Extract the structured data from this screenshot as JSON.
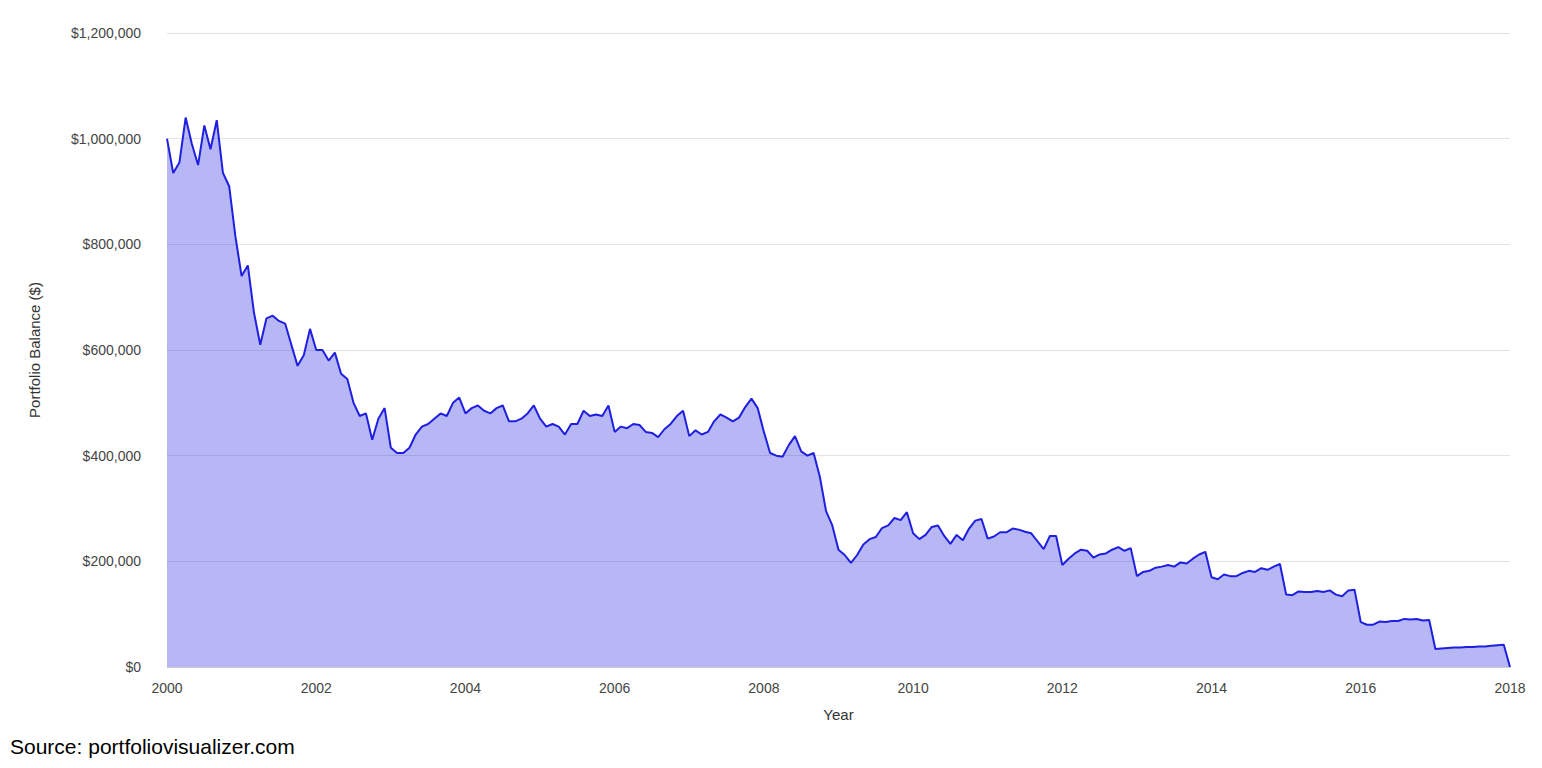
{
  "chart_data": {
    "type": "area",
    "source": "Source: portfoliovisualizer.com",
    "x_label": "Year",
    "y_label": "Portfolio Balance ($)",
    "color": "#1f1fe0",
    "grid": true,
    "xlim": [
      2000,
      2018
    ],
    "xticks": [
      2000,
      2002,
      2004,
      2006,
      2008,
      2010,
      2012,
      2014,
      2016,
      2018
    ],
    "ylim": [
      0,
      1200000
    ],
    "yticks": [
      {
        "value": 0,
        "label": "$0"
      },
      {
        "value": 200000,
        "label": "$200,000"
      },
      {
        "value": 400000,
        "label": "$400,000"
      },
      {
        "value": 600000,
        "label": "$600,000"
      },
      {
        "value": 800000,
        "label": "$800,000"
      },
      {
        "value": 1000000,
        "label": "$1,000,000"
      },
      {
        "value": 1200000,
        "label": "$1,200,000"
      }
    ],
    "x": [
      2000,
      2000.0833,
      2000.1667,
      2000.25,
      2000.3333,
      2000.4167,
      2000.5,
      2000.5833,
      2000.6667,
      2000.75,
      2000.8333,
      2000.9167,
      2001,
      2001.0833,
      2001.1667,
      2001.25,
      2001.3333,
      2001.4167,
      2001.5,
      2001.5833,
      2001.6667,
      2001.75,
      2001.8333,
      2001.9167,
      2002,
      2002.0833,
      2002.1667,
      2002.25,
      2002.3333,
      2002.4167,
      2002.5,
      2002.5833,
      2002.6667,
      2002.75,
      2002.8333,
      2002.9167,
      2003,
      2003.0833,
      2003.1667,
      2003.25,
      2003.3333,
      2003.4167,
      2003.5,
      2003.5833,
      2003.6667,
      2003.75,
      2003.8333,
      2003.9167,
      2004,
      2004.0833,
      2004.1667,
      2004.25,
      2004.3333,
      2004.4167,
      2004.5,
      2004.5833,
      2004.6667,
      2004.75,
      2004.8333,
      2004.9167,
      2005,
      2005.0833,
      2005.1667,
      2005.25,
      2005.3333,
      2005.4167,
      2005.5,
      2005.5833,
      2005.6667,
      2005.75,
      2005.8333,
      2005.9167,
      2006,
      2006.0833,
      2006.1667,
      2006.25,
      2006.3333,
      2006.4167,
      2006.5,
      2006.5833,
      2006.6667,
      2006.75,
      2006.8333,
      2006.9167,
      2007,
      2007.0833,
      2007.1667,
      2007.25,
      2007.3333,
      2007.4167,
      2007.5,
      2007.5833,
      2007.6667,
      2007.75,
      2007.8333,
      2007.9167,
      2008,
      2008.0833,
      2008.1667,
      2008.25,
      2008.3333,
      2008.4167,
      2008.5,
      2008.5833,
      2008.6667,
      2008.75,
      2008.8333,
      2008.9167,
      2009,
      2009.0833,
      2009.1667,
      2009.25,
      2009.3333,
      2009.4167,
      2009.5,
      2009.5833,
      2009.6667,
      2009.75,
      2009.8333,
      2009.9167,
      2010,
      2010.0833,
      2010.1667,
      2010.25,
      2010.3333,
      2010.4167,
      2010.5,
      2010.5833,
      2010.6667,
      2010.75,
      2010.8333,
      2010.9167,
      2011,
      2011.0833,
      2011.1667,
      2011.25,
      2011.3333,
      2011.4167,
      2011.5,
      2011.5833,
      2011.6667,
      2011.75,
      2011.8333,
      2011.9167,
      2012,
      2012.0833,
      2012.1667,
      2012.25,
      2012.3333,
      2012.4167,
      2012.5,
      2012.5833,
      2012.6667,
      2012.75,
      2012.8333,
      2012.9167,
      2013,
      2013.0833,
      2013.1667,
      2013.25,
      2013.3333,
      2013.4167,
      2013.5,
      2013.5833,
      2013.6667,
      2013.75,
      2013.8333,
      2013.9167,
      2014,
      2014.0833,
      2014.1667,
      2014.25,
      2014.3333,
      2014.4167,
      2014.5,
      2014.5833,
      2014.6667,
      2014.75,
      2014.8333,
      2014.9167,
      2015,
      2015.0833,
      2015.1667,
      2015.25,
      2015.3333,
      2015.4167,
      2015.5,
      2015.5833,
      2015.6667,
      2015.75,
      2015.8333,
      2015.9167,
      2016,
      2016.0833,
      2016.1667,
      2016.25,
      2016.3333,
      2016.4167,
      2016.5,
      2016.5833,
      2016.6667,
      2016.75,
      2016.8333,
      2016.9167,
      2017,
      2017.0833,
      2017.1667,
      2017.25,
      2017.3333,
      2017.4167,
      2017.5,
      2017.5833,
      2017.6667,
      2017.75,
      2017.8333,
      2017.9167,
      2018
    ],
    "values": [
      1000000,
      935000,
      955000,
      1040000,
      990000,
      950000,
      1025000,
      980000,
      1035000,
      935000,
      910000,
      815000,
      740000,
      760000,
      670000,
      610000,
      660000,
      665000,
      655000,
      650000,
      610000,
      570000,
      590000,
      640000,
      600000,
      600000,
      580000,
      595000,
      555000,
      545000,
      500000,
      475000,
      480000,
      430000,
      470000,
      490000,
      415000,
      405000,
      405000,
      415000,
      440000,
      455000,
      460000,
      470000,
      480000,
      475000,
      500000,
      510000,
      480000,
      490000,
      495000,
      485000,
      480000,
      490000,
      495000,
      465000,
      465000,
      470000,
      480000,
      495000,
      470000,
      455000,
      460000,
      455000,
      440000,
      460000,
      460000,
      485000,
      475000,
      478000,
      475000,
      495000,
      445000,
      455000,
      452000,
      460000,
      458000,
      445000,
      443000,
      435000,
      450000,
      460000,
      475000,
      485000,
      437000,
      448000,
      440000,
      445000,
      465000,
      478000,
      472000,
      465000,
      472000,
      492000,
      508000,
      490000,
      445000,
      405000,
      400000,
      398000,
      420000,
      437000,
      408000,
      400000,
      405000,
      360000,
      295000,
      268000,
      222000,
      212000,
      197000,
      212000,
      232000,
      242000,
      246000,
      263000,
      268000,
      282000,
      278000,
      293000,
      253000,
      242000,
      250000,
      265000,
      268000,
      248000,
      233000,
      250000,
      240000,
      262000,
      277000,
      280000,
      243000,
      247000,
      255000,
      255000,
      262000,
      260000,
      256000,
      253000,
      238000,
      223000,
      248000,
      248000,
      193000,
      205000,
      215000,
      222000,
      220000,
      207000,
      213000,
      215000,
      222000,
      227000,
      220000,
      225000,
      172000,
      180000,
      182000,
      188000,
      190000,
      193000,
      190000,
      198000,
      196000,
      205000,
      213000,
      218000,
      170000,
      166000,
      175000,
      172000,
      172000,
      178000,
      182000,
      180000,
      187000,
      184000,
      190000,
      195000,
      137000,
      136000,
      143000,
      142000,
      142000,
      144000,
      142000,
      145000,
      137000,
      134000,
      145000,
      146000,
      85000,
      80000,
      80000,
      86000,
      85000,
      87000,
      87000,
      91000,
      90000,
      91000,
      88000,
      89000,
      34000,
      35000,
      36000,
      37000,
      37000,
      38000,
      38000,
      39000,
      39000,
      40000,
      41000,
      42000,
      0
    ]
  }
}
